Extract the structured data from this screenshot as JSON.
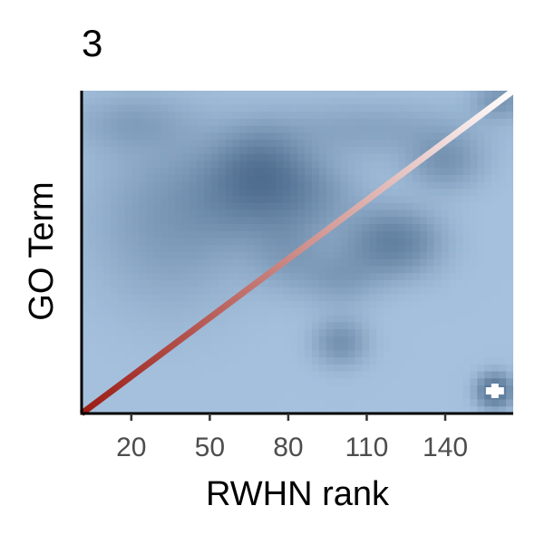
{
  "chart_data": {
    "type": "heatmap",
    "panel_tag": "3",
    "xlabel": "RWHN rank",
    "ylabel": "GO Term",
    "xlim": [
      1,
      166
    ],
    "x_ticks": [
      20,
      50,
      80,
      110,
      140
    ],
    "x_tick_labels": [
      "20",
      "50",
      "80",
      "110",
      "140"
    ],
    "y_ticks": [],
    "grid": false,
    "legend": "none",
    "colors": {
      "heat_low": "#c6e1fb",
      "heat_high": "#2b4a6e",
      "line_start": "#9b1b14",
      "line_end": "#ffffff",
      "point": "#ffffff"
    },
    "density_blobs": [
      {
        "x": 35,
        "y": 0.6,
        "sx": 20,
        "sy": 0.18,
        "w": 0.35
      },
      {
        "x": 60,
        "y": 0.68,
        "sx": 14,
        "sy": 0.1,
        "w": 0.4
      },
      {
        "x": 70,
        "y": 0.76,
        "sx": 11,
        "sy": 0.08,
        "w": 0.6
      },
      {
        "x": 85,
        "y": 0.68,
        "sx": 14,
        "sy": 0.08,
        "w": 0.45
      },
      {
        "x": 80,
        "y": 0.5,
        "sx": 10,
        "sy": 0.08,
        "w": 0.3
      },
      {
        "x": 100,
        "y": 0.42,
        "sx": 10,
        "sy": 0.06,
        "w": 0.3
      },
      {
        "x": 120,
        "y": 0.53,
        "sx": 12,
        "sy": 0.07,
        "w": 0.7
      },
      {
        "x": 100,
        "y": 0.22,
        "sx": 7,
        "sy": 0.05,
        "w": 0.45
      },
      {
        "x": 140,
        "y": 0.78,
        "sx": 10,
        "sy": 0.06,
        "w": 0.4
      },
      {
        "x": 110,
        "y": 0.88,
        "sx": 28,
        "sy": 0.06,
        "w": 0.25
      },
      {
        "x": 20,
        "y": 0.9,
        "sx": 15,
        "sy": 0.06,
        "w": 0.25
      },
      {
        "x": 161,
        "y": 0.97,
        "sx": 7,
        "sy": 0.04,
        "w": 0.4
      },
      {
        "x": 159,
        "y": 0.07,
        "sx": 4.5,
        "sy": 0.035,
        "w": 1.0
      }
    ],
    "highlight_point": {
      "x": 159,
      "y": 0.07
    }
  }
}
